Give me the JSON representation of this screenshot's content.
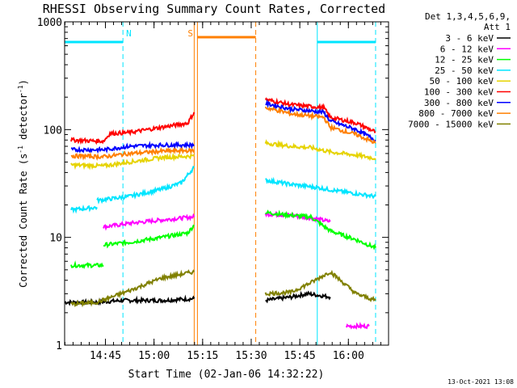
{
  "chart_data": {
    "type": "line",
    "title": "RHESSI Observing Summary Count Rates, Corrected",
    "xlabel": "Start Time (02-Jan-06 14:32:22)",
    "ylabel_main": "Corrected Count Rate (s",
    "ylabel_sup1": "-1",
    "ylabel_mid": " detector",
    "ylabel_sup2": "-1",
    "ylabel_end": ")",
    "yscale": "log",
    "ylim": [
      1,
      1000
    ],
    "xlim_minutes": [
      0,
      100
    ],
    "x_ticks": [
      {
        "label": "14:45",
        "min": 12.6
      },
      {
        "label": "15:00",
        "min": 27.6
      },
      {
        "label": "15:15",
        "min": 42.6
      },
      {
        "label": "15:30",
        "min": 57.6
      },
      {
        "label": "15:45",
        "min": 72.6
      },
      {
        "label": "16:00",
        "min": 87.6
      }
    ],
    "y_ticks": [
      {
        "label": "1",
        "value": 1
      },
      {
        "label": "10",
        "value": 10
      },
      {
        "label": "100",
        "value": 100
      },
      {
        "label": "1000",
        "value": 1000
      }
    ],
    "legend_header": [
      "Det 1,3,4,5,6,9,",
      "Att 1"
    ],
    "footer_date": "13-Oct-2021 13:08",
    "annotations": [
      {
        "label": "N",
        "min": 18,
        "color": "#00e5ff"
      },
      {
        "label": "S",
        "min": 40,
        "color": "#ff7f00"
      }
    ],
    "spans": [
      {
        "from": 0,
        "to": 18,
        "value": 650,
        "color": "#00e5ff"
      },
      {
        "from": 41,
        "to": 59,
        "value": 720,
        "color": "#ff7f00"
      },
      {
        "from": 78,
        "to": 96,
        "value": 650,
        "color": "#00e5ff"
      }
    ],
    "vlines": [
      {
        "min": 0,
        "color": "#00e5ff",
        "dash": false
      },
      {
        "min": 18,
        "color": "#00e5ff",
        "dash": true
      },
      {
        "min": 40,
        "color": "#ff7f00",
        "dash": false
      },
      {
        "min": 41,
        "color": "#ff7f00",
        "dash": false
      },
      {
        "min": 59,
        "color": "#ff7f00",
        "dash": true
      },
      {
        "min": 78,
        "color": "#00e5ff",
        "dash": false
      },
      {
        "min": 96,
        "color": "#00e5ff",
        "dash": true
      }
    ],
    "series": [
      {
        "name": "3 - 6 keV",
        "color": "#000000",
        "segments": [
          [
            [
              0,
              2.5
            ],
            [
              10,
              2.5
            ],
            [
              18,
              2.6
            ],
            [
              30,
              2.6
            ],
            [
              40,
              2.7
            ]
          ],
          [
            [
              62,
              2.6
            ],
            [
              70,
              2.8
            ],
            [
              75,
              3.0
            ],
            [
              82,
              2.8
            ]
          ]
        ]
      },
      {
        "name": "6 - 12 keV",
        "color": "#ff00ff",
        "segments": [
          [
            [
              12,
              12.5
            ],
            [
              20,
              13.5
            ],
            [
              30,
              14.5
            ],
            [
              40,
              15.5
            ]
          ],
          [
            [
              62,
              16.5
            ],
            [
              70,
              16
            ],
            [
              77,
              15
            ],
            [
              82,
              14
            ]
          ],
          [
            [
              87,
              1.5
            ],
            [
              94,
              1.5
            ]
          ]
        ]
      },
      {
        "name": "12 - 25 keV",
        "color": "#00ff00",
        "segments": [
          [
            [
              2,
              5.5
            ],
            [
              12,
              5.5
            ]
          ],
          [
            [
              12,
              8.5
            ],
            [
              20,
              9
            ],
            [
              30,
              10
            ],
            [
              38,
              11
            ],
            [
              40,
              13
            ]
          ],
          [
            [
              62,
              17
            ],
            [
              70,
              16
            ],
            [
              76,
              15.5
            ],
            [
              82,
              11.5
            ],
            [
              90,
              9.5
            ],
            [
              96,
              8
            ]
          ]
        ]
      },
      {
        "name": "25 - 50 keV",
        "color": "#00e5ff",
        "segments": [
          [
            [
              2,
              18
            ],
            [
              10,
              19
            ]
          ],
          [
            [
              10,
              22
            ],
            [
              20,
              24
            ],
            [
              30,
              28
            ],
            [
              36,
              32
            ],
            [
              40,
              45
            ]
          ],
          [
            [
              62,
              34
            ],
            [
              70,
              31
            ],
            [
              78,
              29
            ],
            [
              84,
              27
            ],
            [
              96,
              24
            ]
          ]
        ]
      },
      {
        "name": "50 - 100 keV",
        "color": "#e6d300",
        "segments": [
          [
            [
              2,
              47
            ],
            [
              12,
              46
            ],
            [
              20,
              50
            ],
            [
              30,
              55
            ],
            [
              40,
              57
            ]
          ],
          [
            [
              62,
              75
            ],
            [
              70,
              70
            ],
            [
              76,
              68
            ],
            [
              82,
              62
            ],
            [
              90,
              58
            ],
            [
              96,
              54
            ]
          ]
        ]
      },
      {
        "name": "100 - 300 keV",
        "color": "#ff0000",
        "segments": [
          [
            [
              2,
              80
            ],
            [
              12,
              78
            ],
            [
              14,
              92
            ],
            [
              20,
              94
            ],
            [
              30,
              105
            ],
            [
              38,
              115
            ],
            [
              40,
              145
            ]
          ],
          [
            [
              62,
              190
            ],
            [
              70,
              170
            ],
            [
              80,
              160
            ],
            [
              82,
              130
            ],
            [
              90,
              115
            ],
            [
              96,
              95
            ]
          ]
        ]
      },
      {
        "name": "300 - 800 keV",
        "color": "#0000ff",
        "segments": [
          [
            [
              2,
              65
            ],
            [
              12,
              65
            ],
            [
              20,
              70
            ],
            [
              30,
              72
            ],
            [
              40,
              72
            ]
          ],
          [
            [
              62,
              175
            ],
            [
              70,
              155
            ],
            [
              80,
              145
            ],
            [
              82,
              120
            ],
            [
              90,
              100
            ],
            [
              96,
              80
            ]
          ]
        ]
      },
      {
        "name": "800 - 7000 keV",
        "color": "#ff7f00",
        "segments": [
          [
            [
              2,
              57
            ],
            [
              12,
              56
            ],
            [
              20,
              60
            ],
            [
              30,
              63
            ],
            [
              40,
              64
            ]
          ],
          [
            [
              62,
              160
            ],
            [
              70,
              140
            ],
            [
              80,
              130
            ],
            [
              82,
              105
            ],
            [
              90,
              90
            ],
            [
              96,
              75
            ]
          ]
        ]
      },
      {
        "name": "7000 - 15000 keV",
        "color": "#808000",
        "segments": [
          [
            [
              2,
              2.4
            ],
            [
              10,
              2.5
            ],
            [
              20,
              3.2
            ],
            [
              30,
              4.2
            ],
            [
              40,
              4.8
            ]
          ],
          [
            [
              62,
              3.0
            ],
            [
              70,
              3.1
            ],
            [
              76,
              3.8
            ],
            [
              82,
              4.8
            ],
            [
              90,
              3.0
            ],
            [
              96,
              2.6
            ]
          ]
        ]
      }
    ]
  }
}
